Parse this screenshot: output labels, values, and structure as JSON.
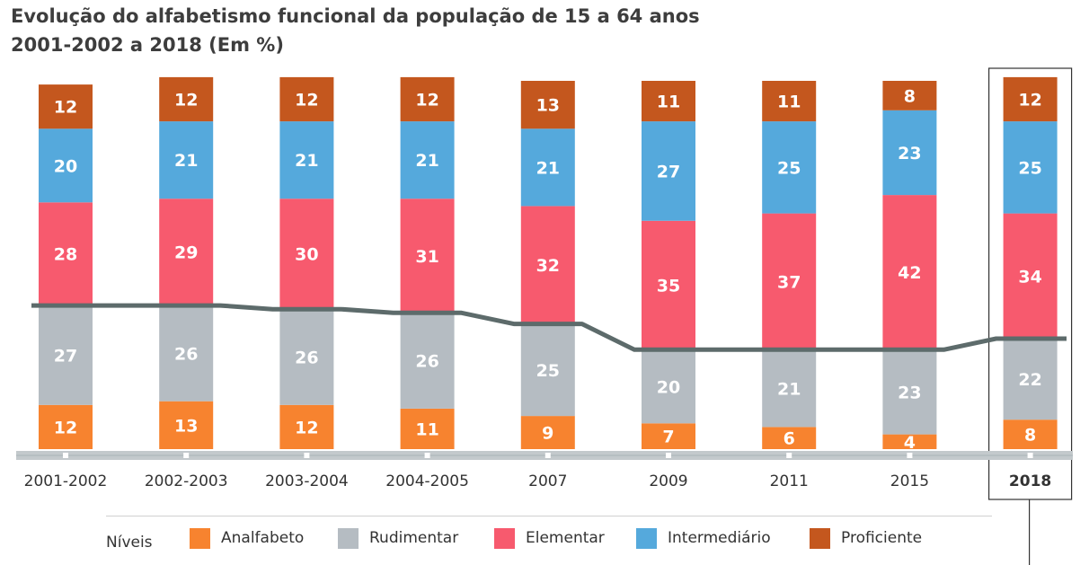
{
  "title_line_1": "Evolução do alfabetismo funcional da população de 15 a 64 anos",
  "title_line_2": "2001-2002 a 2018 (Em %)",
  "legend_title": "Níveis",
  "chart_data": {
    "type": "bar",
    "stacked": true,
    "unit": "%",
    "categories": [
      "2001-2002",
      "2002-2003",
      "2003-2004",
      "2004-2005",
      "2007",
      "2009",
      "2011",
      "2015",
      "2018"
    ],
    "highlighted_category": "2018",
    "series": [
      {
        "name": "Analfabeto",
        "color": "#f7832f",
        "values": [
          12,
          13,
          12,
          11,
          9,
          7,
          6,
          4,
          8
        ]
      },
      {
        "name": "Rudimentar",
        "color": "#b5bcc2",
        "values": [
          27,
          26,
          26,
          26,
          25,
          20,
          21,
          23,
          22
        ]
      },
      {
        "name": "Elementar",
        "color": "#f75a6e",
        "values": [
          28,
          29,
          30,
          31,
          32,
          35,
          37,
          42,
          34
        ]
      },
      {
        "name": "Intermediário",
        "color": "#55a9dc",
        "values": [
          20,
          21,
          21,
          21,
          21,
          27,
          25,
          23,
          25
        ]
      },
      {
        "name": "Proficiente",
        "color": "#c4571e",
        "values": [
          12,
          12,
          12,
          12,
          13,
          11,
          11,
          8,
          12
        ]
      }
    ],
    "threshold_line": {
      "color": "#5d6b6b",
      "between_series": [
        "Rudimentar",
        "Elementar"
      ]
    },
    "legend_position": "bottom"
  }
}
